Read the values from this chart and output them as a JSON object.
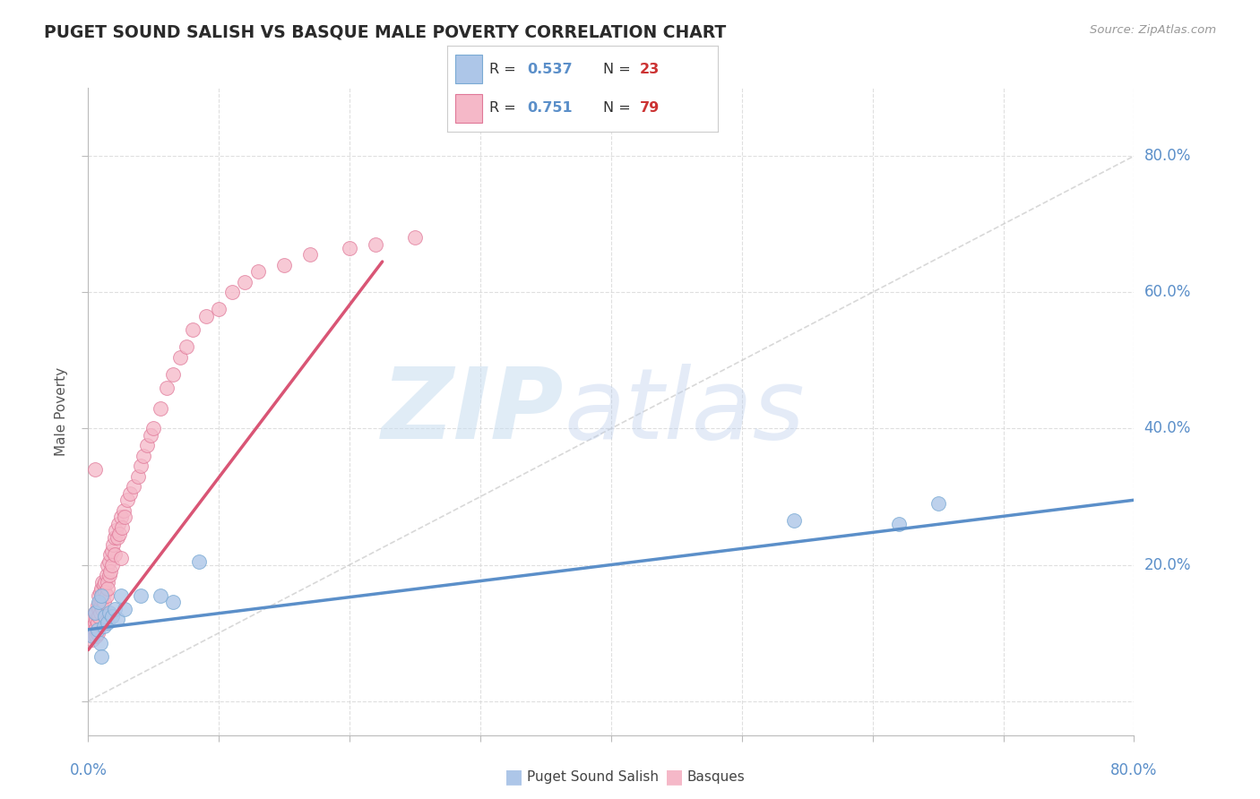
{
  "title": "PUGET SOUND SALISH VS BASQUE MALE POVERTY CORRELATION CHART",
  "source": "Source: ZipAtlas.com",
  "ylabel": "Male Poverty",
  "xlim": [
    0.0,
    0.8
  ],
  "ylim": [
    -0.05,
    0.9
  ],
  "series1_name": "Puget Sound Salish",
  "series1_color": "#adc6e8",
  "series1_edge_color": "#7aaad4",
  "series1_R": 0.537,
  "series1_N": 23,
  "series1_line_color": "#5b8fc9",
  "series2_name": "Basques",
  "series2_color": "#f5b8c8",
  "series2_edge_color": "#e07898",
  "series2_R": 0.751,
  "series2_N": 79,
  "series2_line_color": "#d95575",
  "diagonal_color": "#c8c8c8",
  "background_color": "#ffffff",
  "grid_color": "#d8d8d8",
  "title_color": "#2a2a2a",
  "axis_label_color": "#5b8fc9",
  "legend_R_color": "#5b8fc9",
  "legend_N_color": "#cc3333",
  "scatter_size": 130,
  "blue_line_x0": 0.0,
  "blue_line_y0": 0.105,
  "blue_line_x1": 0.8,
  "blue_line_y1": 0.295,
  "red_line_x0": 0.0,
  "red_line_y0": 0.075,
  "red_line_x1": 0.225,
  "red_line_y1": 0.645,
  "x1_data": [
    0.003,
    0.005,
    0.007,
    0.008,
    0.009,
    0.01,
    0.01,
    0.012,
    0.013,
    0.015,
    0.016,
    0.018,
    0.02,
    0.022,
    0.025,
    0.028,
    0.04,
    0.055,
    0.065,
    0.085,
    0.54,
    0.62,
    0.65
  ],
  "y1_data": [
    0.095,
    0.13,
    0.105,
    0.145,
    0.085,
    0.155,
    0.065,
    0.11,
    0.125,
    0.115,
    0.13,
    0.125,
    0.135,
    0.12,
    0.155,
    0.135,
    0.155,
    0.155,
    0.145,
    0.205,
    0.265,
    0.26,
    0.29
  ],
  "x2_data": [
    0.002,
    0.003,
    0.003,
    0.004,
    0.004,
    0.005,
    0.005,
    0.005,
    0.006,
    0.006,
    0.006,
    0.007,
    0.007,
    0.007,
    0.008,
    0.008,
    0.008,
    0.009,
    0.009,
    0.009,
    0.01,
    0.01,
    0.01,
    0.011,
    0.011,
    0.011,
    0.012,
    0.012,
    0.013,
    0.013,
    0.014,
    0.014,
    0.015,
    0.015,
    0.015,
    0.016,
    0.016,
    0.017,
    0.017,
    0.018,
    0.018,
    0.019,
    0.02,
    0.02,
    0.021,
    0.022,
    0.023,
    0.024,
    0.025,
    0.026,
    0.027,
    0.028,
    0.03,
    0.032,
    0.035,
    0.038,
    0.04,
    0.042,
    0.045,
    0.048,
    0.05,
    0.055,
    0.06,
    0.065,
    0.07,
    0.075,
    0.08,
    0.09,
    0.1,
    0.11,
    0.12,
    0.13,
    0.15,
    0.17,
    0.2,
    0.22,
    0.25,
    0.005,
    0.025
  ],
  "y2_data": [
    0.1,
    0.12,
    0.09,
    0.11,
    0.095,
    0.115,
    0.105,
    0.13,
    0.095,
    0.12,
    0.13,
    0.14,
    0.115,
    0.1,
    0.135,
    0.125,
    0.155,
    0.145,
    0.13,
    0.16,
    0.14,
    0.15,
    0.165,
    0.155,
    0.175,
    0.135,
    0.17,
    0.145,
    0.175,
    0.16,
    0.185,
    0.155,
    0.2,
    0.175,
    0.165,
    0.205,
    0.185,
    0.215,
    0.19,
    0.22,
    0.2,
    0.23,
    0.24,
    0.215,
    0.25,
    0.24,
    0.26,
    0.245,
    0.27,
    0.255,
    0.28,
    0.27,
    0.295,
    0.305,
    0.315,
    0.33,
    0.345,
    0.36,
    0.375,
    0.39,
    0.4,
    0.43,
    0.46,
    0.48,
    0.505,
    0.52,
    0.545,
    0.565,
    0.575,
    0.6,
    0.615,
    0.63,
    0.64,
    0.655,
    0.665,
    0.67,
    0.68,
    0.34,
    0.21
  ],
  "watermark_zip": "ZIP",
  "watermark_atlas": "atlas"
}
